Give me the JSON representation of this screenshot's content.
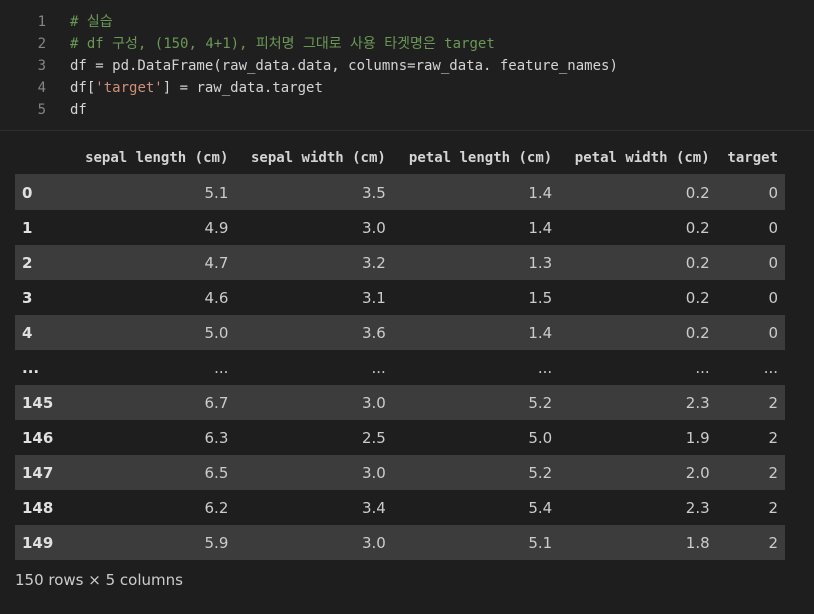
{
  "code": {
    "lines": [
      {
        "num": "1",
        "parts": [
          {
            "cls": "cmt",
            "text": "# 실습"
          }
        ]
      },
      {
        "num": "2",
        "parts": [
          {
            "cls": "cmt",
            "text": "# df 구성, (150, 4+1), 피처명 그대로 사용 타겟명은 target"
          }
        ]
      },
      {
        "num": "3",
        "parts": [
          {
            "cls": "txt",
            "text": "df = pd.DataFrame(raw_data.data, columns=raw_data. feature_names)"
          }
        ]
      },
      {
        "num": "4",
        "parts": [
          {
            "cls": "txt",
            "text": "df["
          },
          {
            "cls": "str",
            "text": "'target'"
          },
          {
            "cls": "txt",
            "text": "] = raw_data.target"
          }
        ]
      },
      {
        "num": "5",
        "parts": [
          {
            "cls": "txt",
            "text": "df"
          }
        ]
      }
    ]
  },
  "table": {
    "columns": [
      "",
      "sepal length (cm)",
      "sepal width (cm)",
      "petal length (cm)",
      "petal width (cm)",
      "target"
    ],
    "rows": [
      [
        "0",
        "5.1",
        "3.5",
        "1.4",
        "0.2",
        "0"
      ],
      [
        "1",
        "4.9",
        "3.0",
        "1.4",
        "0.2",
        "0"
      ],
      [
        "2",
        "4.7",
        "3.2",
        "1.3",
        "0.2",
        "0"
      ],
      [
        "3",
        "4.6",
        "3.1",
        "1.5",
        "0.2",
        "0"
      ],
      [
        "4",
        "5.0",
        "3.6",
        "1.4",
        "0.2",
        "0"
      ],
      [
        "...",
        "...",
        "...",
        "...",
        "...",
        "..."
      ],
      [
        "145",
        "6.7",
        "3.0",
        "5.2",
        "2.3",
        "2"
      ],
      [
        "146",
        "6.3",
        "2.5",
        "5.0",
        "1.9",
        "2"
      ],
      [
        "147",
        "6.5",
        "3.0",
        "5.2",
        "2.0",
        "2"
      ],
      [
        "148",
        "6.2",
        "3.4",
        "5.4",
        "2.3",
        "2"
      ],
      [
        "149",
        "5.9",
        "3.0",
        "5.1",
        "1.8",
        "2"
      ]
    ]
  },
  "shape_text": "150 rows × 5 columns"
}
